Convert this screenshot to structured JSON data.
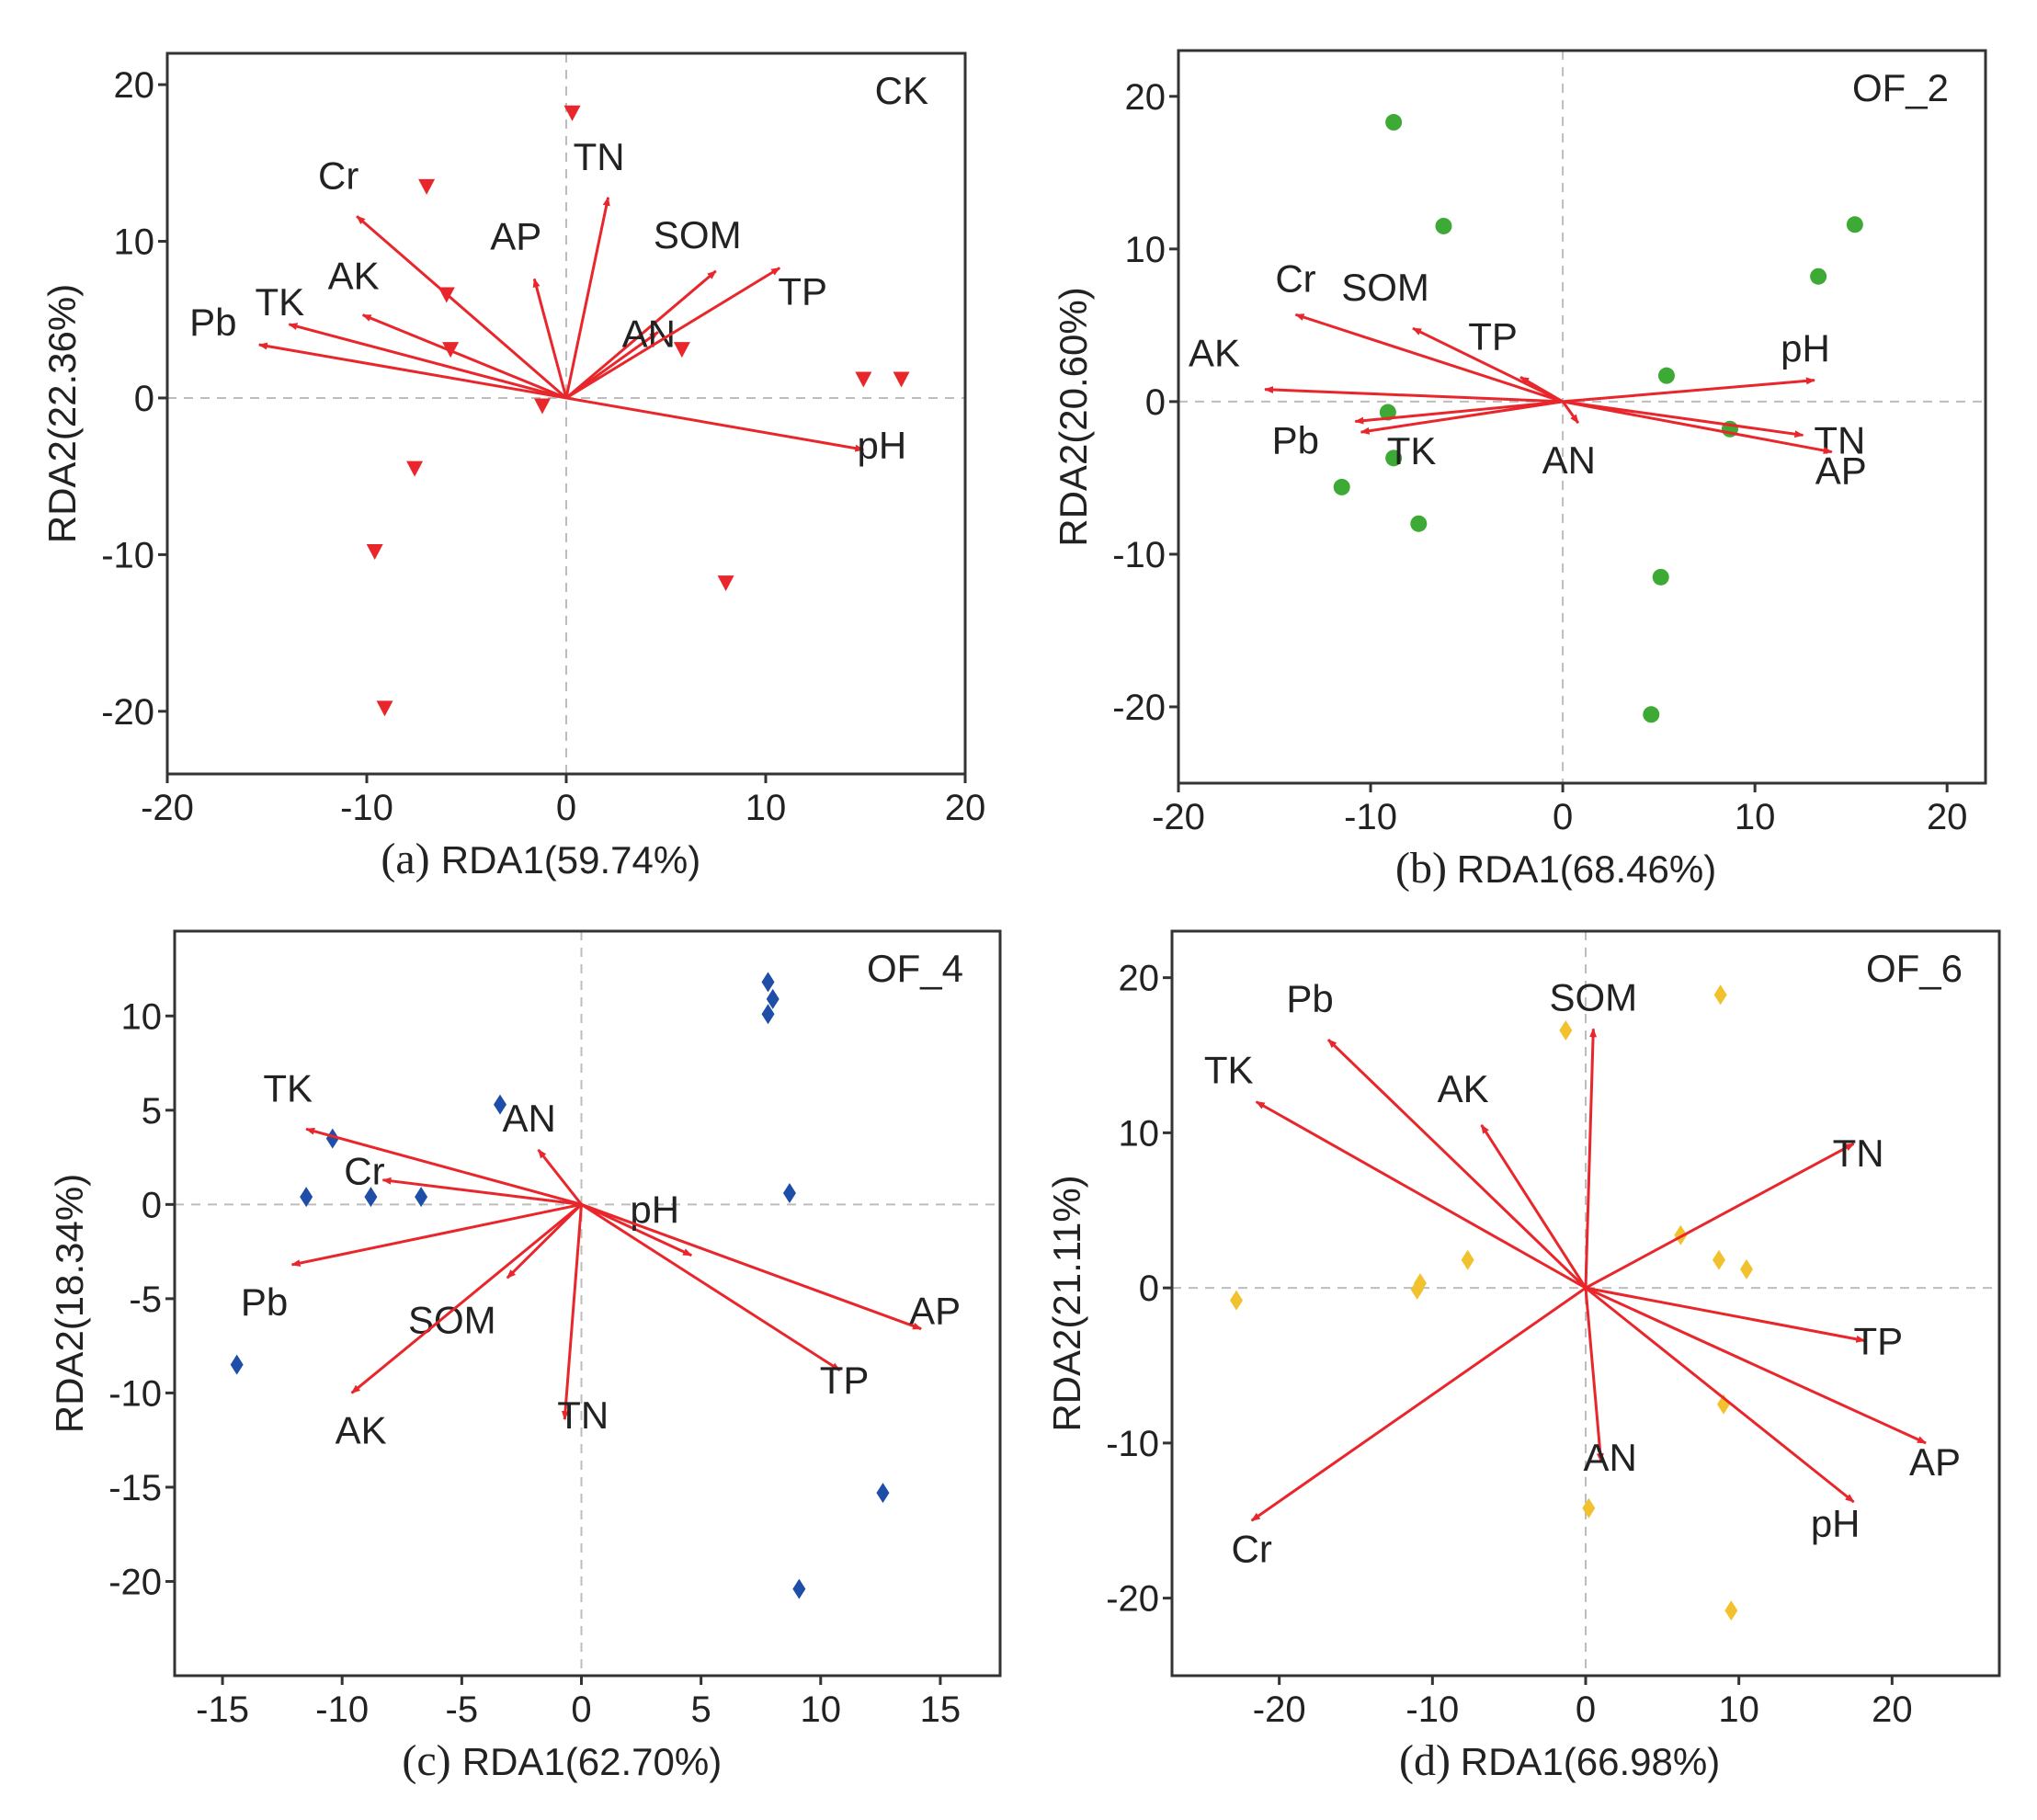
{
  "figure": {
    "type": "rda-biplot-grid"
  },
  "colors": {
    "arrow": "#e8262b",
    "frame": "#333333",
    "zero_line": "#bdbdbd",
    "text": "#222222"
  },
  "chart_data": [
    {
      "type": "scatter",
      "panel_letter": "(a)",
      "panel_name": "CK",
      "xlabel": "RDA1(59.74%)",
      "ylabel": "RDA2(22.36%)",
      "xlim": [
        -20,
        20
      ],
      "ylim": [
        -24,
        22
      ],
      "xticks": [
        -20,
        -10,
        0,
        10,
        20
      ],
      "yticks": [
        -20,
        -10,
        0,
        10,
        20
      ],
      "marker": "triangle-down",
      "marker_color": "#e8262b",
      "points": [
        [
          0.3,
          18.2
        ],
        [
          -7,
          13.5
        ],
        [
          -6,
          6.6
        ],
        [
          -5.8,
          3.1
        ],
        [
          -1.2,
          -0.5
        ],
        [
          5.8,
          3.1
        ],
        [
          14.9,
          1.2
        ],
        [
          16.8,
          1.2
        ],
        [
          -7.6,
          -4.5
        ],
        [
          -9.6,
          -9.8
        ],
        [
          8,
          -11.8
        ],
        [
          -9.1,
          -19.8
        ]
      ],
      "vectors": [
        {
          "label": "Cr",
          "x": -10.5,
          "y": 11.6
        },
        {
          "label": "AK",
          "x": -10.2,
          "y": 5.3
        },
        {
          "label": "TK",
          "x": -13.9,
          "y": 4.7
        },
        {
          "label": "Pb",
          "x": -15.4,
          "y": 3.4
        },
        {
          "label": "AP",
          "x": -1.6,
          "y": 7.6
        },
        {
          "label": "TN",
          "x": 2.1,
          "y": 12.8
        },
        {
          "label": "SOM",
          "x": 7.5,
          "y": 8.1
        },
        {
          "label": "AN",
          "x": 4.6,
          "y": 4.2
        },
        {
          "label": "TP",
          "x": 10.7,
          "y": 8.3
        },
        {
          "label": "pH",
          "x": 14.9,
          "y": -3.3
        }
      ]
    },
    {
      "type": "scatter",
      "panel_letter": "(b)",
      "panel_name": "OF_2",
      "xlabel": "RDA1(68.46%)",
      "ylabel": "RDA2(20.60%)",
      "xlim": [
        -20,
        22
      ],
      "ylim": [
        -25,
        23
      ],
      "xticks": [
        -20,
        -10,
        0,
        10,
        20
      ],
      "yticks": [
        -20,
        -10,
        0,
        10,
        20
      ],
      "marker": "circle",
      "marker_color": "#3daa35",
      "points": [
        [
          -8.8,
          18.3
        ],
        [
          -6.2,
          11.5
        ],
        [
          15.2,
          11.6
        ],
        [
          13.3,
          8.2
        ],
        [
          5.4,
          1.7
        ],
        [
          -9.1,
          -0.7
        ],
        [
          -8.8,
          -3.7
        ],
        [
          -11.5,
          -5.6
        ],
        [
          -7.5,
          -8
        ],
        [
          8.7,
          -1.8
        ],
        [
          5.1,
          -11.5
        ],
        [
          4.6,
          -20.5
        ]
      ],
      "vectors": [
        {
          "label": "Cr",
          "x": -13.9,
          "y": 5.7
        },
        {
          "label": "SOM",
          "x": -7.8,
          "y": 4.8
        },
        {
          "label": "TP",
          "x": -2.2,
          "y": 1.6
        },
        {
          "label": "AK",
          "x": -15.5,
          "y": 0.8
        },
        {
          "label": "Pb",
          "x": -10.8,
          "y": -1.3
        },
        {
          "label": "TK",
          "x": -10.5,
          "y": -2
        },
        {
          "label": "AN",
          "x": 0.8,
          "y": -1.4
        },
        {
          "label": "pH",
          "x": 13.1,
          "y": 1.4
        },
        {
          "label": "TN",
          "x": 12.5,
          "y": -2.2
        },
        {
          "label": "AP",
          "x": 14,
          "y": -3.3
        }
      ]
    },
    {
      "type": "scatter",
      "panel_letter": "(c)",
      "panel_name": "OF_4",
      "xlabel": "RDA1(62.70%)",
      "ylabel": "RDA2(18.34%)",
      "xlim": [
        -17,
        17.5
      ],
      "ylim": [
        -25,
        14.5
      ],
      "xticks": [
        -15,
        -10,
        -5,
        0,
        5,
        10,
        15
      ],
      "yticks": [
        -20,
        -15,
        -10,
        -5,
        0,
        5,
        10
      ],
      "marker": "diamond",
      "marker_color": "#1f4ea8",
      "points": [
        [
          7.8,
          11.8
        ],
        [
          8,
          10.9
        ],
        [
          7.8,
          10.1
        ],
        [
          -3.4,
          5.3
        ],
        [
          -10.4,
          3.5
        ],
        [
          -11.5,
          0.4
        ],
        [
          -8.8,
          0.4
        ],
        [
          -6.7,
          0.4
        ],
        [
          8.7,
          0.6
        ],
        [
          -14.4,
          -8.5
        ],
        [
          12.6,
          -15.3
        ],
        [
          9.1,
          -20.4
        ]
      ],
      "vectors": [
        {
          "label": "TK",
          "x": -11.5,
          "y": 4
        },
        {
          "label": "Cr",
          "x": -8.3,
          "y": 1.3
        },
        {
          "label": "AN",
          "x": -1.8,
          "y": 2.9
        },
        {
          "label": "Pb",
          "x": -12.1,
          "y": -3.2
        },
        {
          "label": "SOM",
          "x": -3.1,
          "y": -3.9
        },
        {
          "label": "AK",
          "x": -9.6,
          "y": -10
        },
        {
          "label": "TN",
          "x": -0.7,
          "y": -11.4
        },
        {
          "label": "pH",
          "x": 4.6,
          "y": -2.7
        },
        {
          "label": "AP",
          "x": 14.2,
          "y": -6.6
        },
        {
          "label": "TP",
          "x": 10.8,
          "y": -8.8
        }
      ]
    },
    {
      "type": "scatter",
      "panel_letter": "(d)",
      "panel_name": "OF_6",
      "xlabel": "RDA1(66.98%)",
      "ylabel": "RDA2(21.11%)",
      "xlim": [
        -27,
        27
      ],
      "ylim": [
        -25,
        23
      ],
      "xticks": [
        -20,
        -10,
        0,
        10,
        20
      ],
      "yticks": [
        -20,
        -10,
        0,
        10,
        20
      ],
      "marker": "diamond",
      "marker_color": "#f2c12e",
      "points": [
        [
          8.8,
          18.9
        ],
        [
          -1.3,
          16.6
        ],
        [
          -22.8,
          -0.8
        ],
        [
          -11,
          -0.1
        ],
        [
          -10.8,
          0.3
        ],
        [
          -7.7,
          1.8
        ],
        [
          6.2,
          3.4
        ],
        [
          8.7,
          1.8
        ],
        [
          10.5,
          1.2
        ],
        [
          9,
          -7.5
        ],
        [
          0.2,
          -14.2
        ],
        [
          9.5,
          -20.8
        ]
      ],
      "vectors": [
        {
          "label": "Pb",
          "x": -16.8,
          "y": 16
        },
        {
          "label": "TK",
          "x": -21.5,
          "y": 12
        },
        {
          "label": "AK",
          "x": -6.8,
          "y": 10.5
        },
        {
          "label": "SOM",
          "x": 0.5,
          "y": 16.7
        },
        {
          "label": "TN",
          "x": 17.5,
          "y": 9.3
        },
        {
          "label": "TP",
          "x": 18.2,
          "y": -3.4
        },
        {
          "label": "AP",
          "x": 22.2,
          "y": -10
        },
        {
          "label": "pH",
          "x": 17.5,
          "y": -13.8
        },
        {
          "label": "AN",
          "x": 1,
          "y": -11.2
        },
        {
          "label": "Cr",
          "x": -21.8,
          "y": -15
        }
      ]
    }
  ]
}
